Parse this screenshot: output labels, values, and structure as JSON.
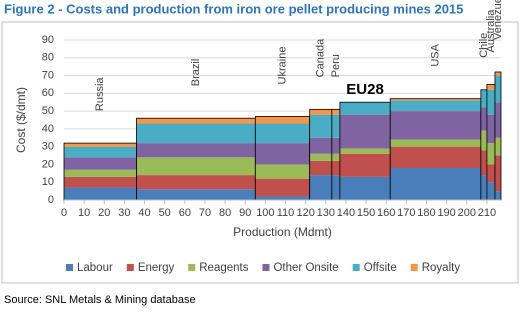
{
  "chart_data": {
    "type": "cost-curve",
    "title": "Figure 2 - Costs and production from iron ore pellet producing mines 2015",
    "x_label": "Production (Mdmt)",
    "y_label": "Cost ($/dmt)",
    "categories": [
      "Russia",
      "Brazil",
      "Ukraine",
      "Canada",
      "Peru",
      "EU28",
      "USA",
      "Chile",
      "Australia",
      "Venezuela"
    ],
    "bins": [
      0,
      36,
      95,
      122,
      133,
      137,
      162,
      207,
      210,
      214,
      217
    ],
    "series": [
      {
        "name": "Labour",
        "color": "#4a7ebb",
        "values": [
          7,
          6,
          2,
          14,
          14,
          13,
          18,
          14,
          10,
          5
        ]
      },
      {
        "name": "Energy",
        "color": "#c0504d",
        "values": [
          6,
          8,
          10,
          8,
          8,
          13,
          12,
          14,
          10,
          20
        ]
      },
      {
        "name": "Reagents",
        "color": "#9bbb59",
        "values": [
          4,
          10,
          8,
          4,
          4,
          3,
          4,
          11,
          12,
          10
        ]
      },
      {
        "name": "Other Onsite",
        "color": "#8064a2",
        "values": [
          7,
          8,
          12,
          9,
          9,
          19,
          16,
          13,
          16,
          20
        ]
      },
      {
        "name": "Offsite",
        "color": "#4bacc6",
        "values": [
          6,
          11,
          11,
          13,
          13,
          7,
          6,
          10,
          14,
          15
        ]
      },
      {
        "name": "Royalty",
        "color": "#f79646",
        "values": [
          2,
          3,
          4,
          3,
          3,
          0,
          1,
          0,
          3,
          2
        ]
      }
    ],
    "xlim": [
      0,
      217
    ],
    "xticks": [
      0,
      10,
      20,
      30,
      40,
      50,
      60,
      70,
      80,
      90,
      100,
      110,
      120,
      130,
      140,
      150,
      160,
      170,
      180,
      190,
      200,
      210
    ],
    "ylim": [
      0,
      90
    ],
    "yticks": [
      0,
      10,
      20,
      30,
      40,
      50,
      60,
      70,
      80,
      90
    ],
    "grid": true,
    "legend": "bottom",
    "source": "Source: SNL Metals & Mining database"
  }
}
